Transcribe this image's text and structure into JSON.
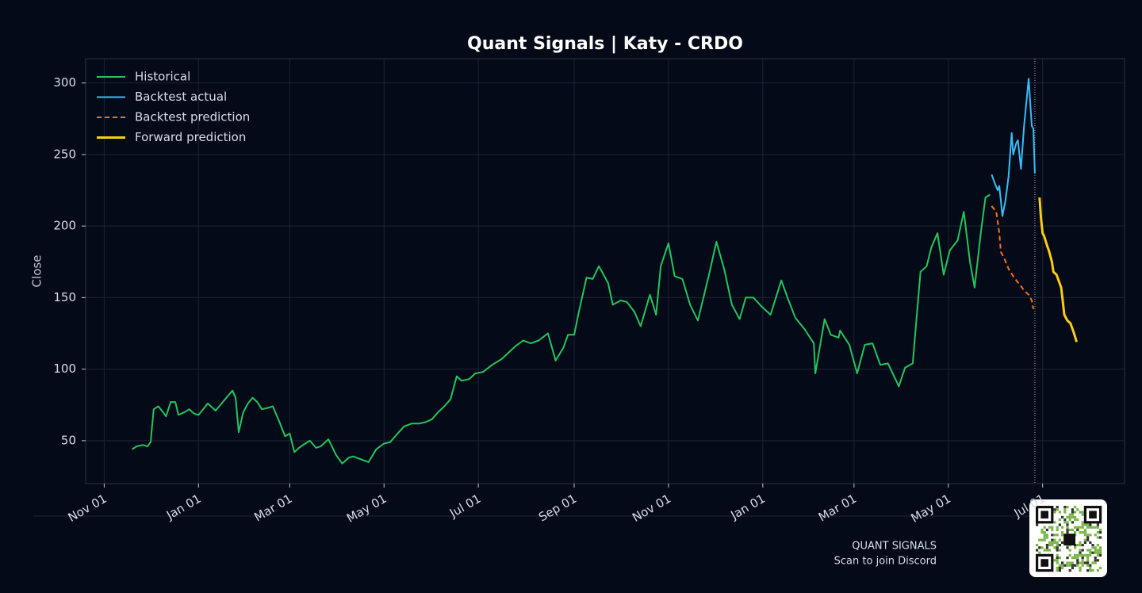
{
  "chart_data": {
    "type": "line",
    "title": "Quant Signals | Katy - CRDO",
    "y_label": "Close",
    "xlim": [
      -12,
      660
    ],
    "ylim": [
      20,
      317
    ],
    "xticks": [
      {
        "value": 0,
        "label": "Nov 01"
      },
      {
        "value": 61,
        "label": "Jan 01"
      },
      {
        "value": 120,
        "label": "Mar 01"
      },
      {
        "value": 181,
        "label": "May 01"
      },
      {
        "value": 242,
        "label": "Jul 01"
      },
      {
        "value": 304,
        "label": "Sep 01"
      },
      {
        "value": 365,
        "label": "Nov 01"
      },
      {
        "value": 426,
        "label": "Jan 01"
      },
      {
        "value": 485,
        "label": "Mar 01"
      },
      {
        "value": 546,
        "label": "May 01"
      },
      {
        "value": 607,
        "label": "Jul 01"
      }
    ],
    "yticks": [
      50,
      100,
      150,
      200,
      250,
      300
    ],
    "grid": true,
    "legend": "upper left",
    "vline_x": 602,
    "series": [
      {
        "name": "Historical",
        "color": "#22c55e",
        "dash": false,
        "width": 2,
        "x": [
          18,
          21,
          25,
          28,
          30,
          32,
          35,
          38,
          40,
          43,
          46,
          48,
          52,
          55,
          58,
          61,
          64,
          67,
          70,
          72,
          76,
          79,
          83,
          85,
          87,
          90,
          93,
          96,
          99,
          102,
          106,
          109,
          113,
          117,
          120,
          123,
          126,
          130,
          133,
          137,
          140,
          145,
          150,
          154,
          158,
          161,
          166,
          171,
          176,
          181,
          185,
          189,
          194,
          199,
          204,
          208,
          212,
          216,
          220,
          224,
          228,
          231,
          236,
          240,
          245,
          251,
          257,
          262,
          266,
          271,
          276,
          281,
          287,
          292,
          297,
          300,
          304,
          307,
          312,
          316,
          320,
          326,
          329,
          334,
          338,
          343,
          347,
          353,
          357,
          360,
          365,
          369,
          374,
          379,
          384,
          391,
          396,
          401,
          406,
          411,
          415,
          420,
          425,
          431,
          438,
          442,
          447,
          453,
          459,
          460,
          466,
          470,
          475,
          476,
          482,
          487,
          492,
          497,
          502,
          507,
          514,
          518,
          523,
          528,
          532,
          535,
          539,
          543,
          547,
          552,
          556,
          560,
          563,
          567,
          570,
          573
        ],
        "values": [
          44,
          46,
          47,
          46,
          49,
          72,
          74,
          70,
          67,
          77,
          77,
          68,
          70,
          72,
          69,
          68,
          72,
          76,
          73,
          71,
          76,
          80,
          85,
          80,
          56,
          70,
          76,
          80,
          77,
          72,
          73,
          74,
          64,
          53,
          55,
          42,
          45,
          48,
          50,
          45,
          46,
          51,
          40,
          34,
          38,
          39,
          37,
          35,
          44,
          48,
          49,
          54,
          60,
          62,
          62,
          63,
          65,
          70,
          74,
          79,
          95,
          92,
          93,
          97,
          98,
          103,
          107,
          112,
          116,
          120,
          118,
          120,
          125,
          106,
          115,
          124,
          124,
          140,
          164,
          163,
          172,
          160,
          145,
          148,
          147,
          140,
          130,
          152,
          138,
          172,
          188,
          165,
          163,
          145,
          134,
          165,
          189,
          170,
          145,
          135,
          150,
          150,
          144,
          138,
          162,
          150,
          136,
          128,
          118,
          97,
          135,
          124,
          122,
          127,
          117,
          97,
          117,
          118,
          103,
          104,
          88,
          101,
          104,
          168,
          172,
          185,
          195,
          166,
          183,
          190,
          210,
          175,
          157,
          195,
          220,
          222
        ]
      },
      {
        "name": "Backtest actual",
        "color": "#38bdf8",
        "dash": false,
        "width": 2,
        "x": [
          574,
          576,
          578,
          579,
          581,
          583,
          585,
          587,
          588,
          590,
          591,
          593,
          595,
          598,
          600,
          601,
          602
        ],
        "values": [
          236,
          230,
          225,
          228,
          207,
          218,
          235,
          265,
          250,
          258,
          260,
          240,
          270,
          303,
          270,
          268,
          237
        ]
      },
      {
        "name": "Backtest prediction",
        "color": "#f97316",
        "dash": true,
        "width": 2,
        "x": [
          574,
          577,
          579,
          580,
          582,
          585,
          588,
          590,
          593,
          595,
          598,
          600,
          601
        ],
        "values": [
          214,
          210,
          195,
          182,
          178,
          170,
          165,
          162,
          158,
          155,
          152,
          148,
          142
        ]
      },
      {
        "name": "Forward prediction",
        "color": "#facc15",
        "dash": false,
        "width": 3,
        "x": [
          605,
          606,
          607,
          608,
          610,
          611,
          613,
          614,
          616,
          618,
          619,
          620,
          621,
          623,
          625,
          627,
          629
        ],
        "values": [
          220,
          205,
          195,
          193,
          186,
          183,
          175,
          168,
          166,
          160,
          157,
          148,
          138,
          134,
          132,
          126,
          119
        ]
      }
    ],
    "footer": {
      "brand": "QUANT SIGNALS",
      "caption": "Scan to join Discord"
    }
  }
}
